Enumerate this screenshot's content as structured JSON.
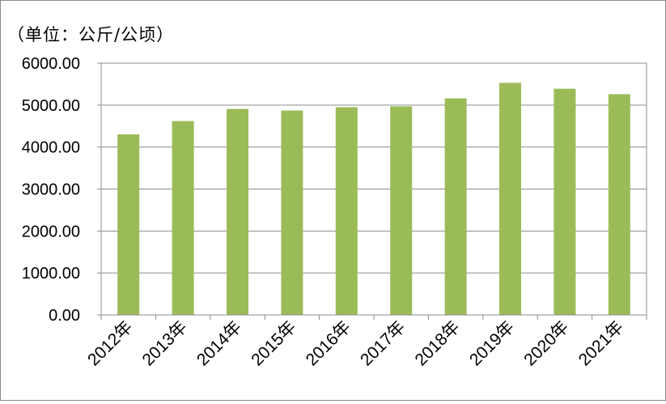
{
  "chart_data": {
    "type": "bar",
    "unit_label": "（单位：公斤/公顷）",
    "categories": [
      "2012年",
      "2013年",
      "2014年",
      "2015年",
      "2016年",
      "2017年",
      "2018年",
      "2019年",
      "2020年",
      "2021年"
    ],
    "values": [
      4305,
      4620,
      4910,
      4870,
      4950,
      4970,
      5160,
      5530,
      5390,
      5260
    ],
    "y_ticks": [
      "0.00",
      "1000.00",
      "2000.00",
      "3000.00",
      "4000.00",
      "5000.00",
      "6000.00"
    ],
    "ylim": [
      0,
      6000
    ],
    "grid": true,
    "legend": "none",
    "bar_color": "#9bbb59"
  }
}
